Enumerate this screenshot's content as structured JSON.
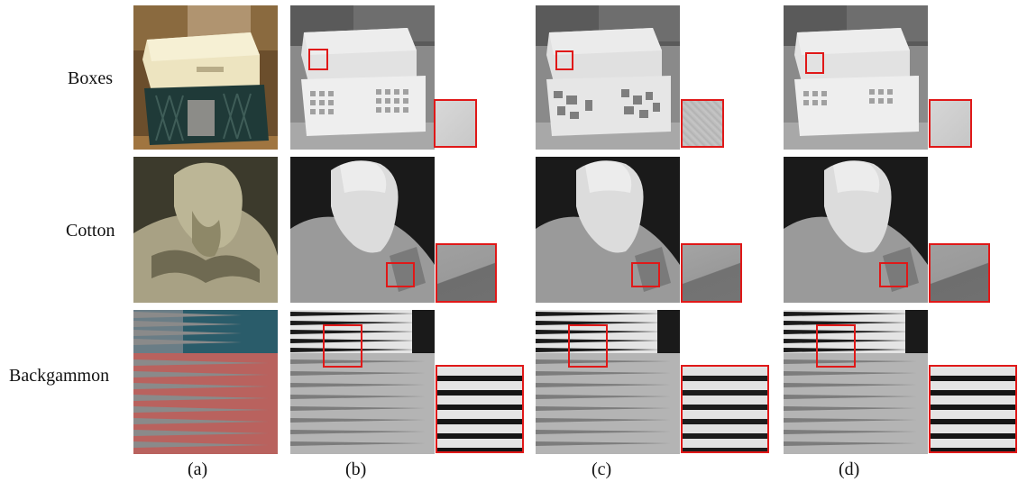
{
  "rows": [
    "Boxes",
    "Cotton",
    "Backgammon"
  ],
  "columns": [
    "(a)",
    "(b)",
    "(c)",
    "(d)"
  ],
  "colors": {
    "highlight": "#e01818"
  }
}
